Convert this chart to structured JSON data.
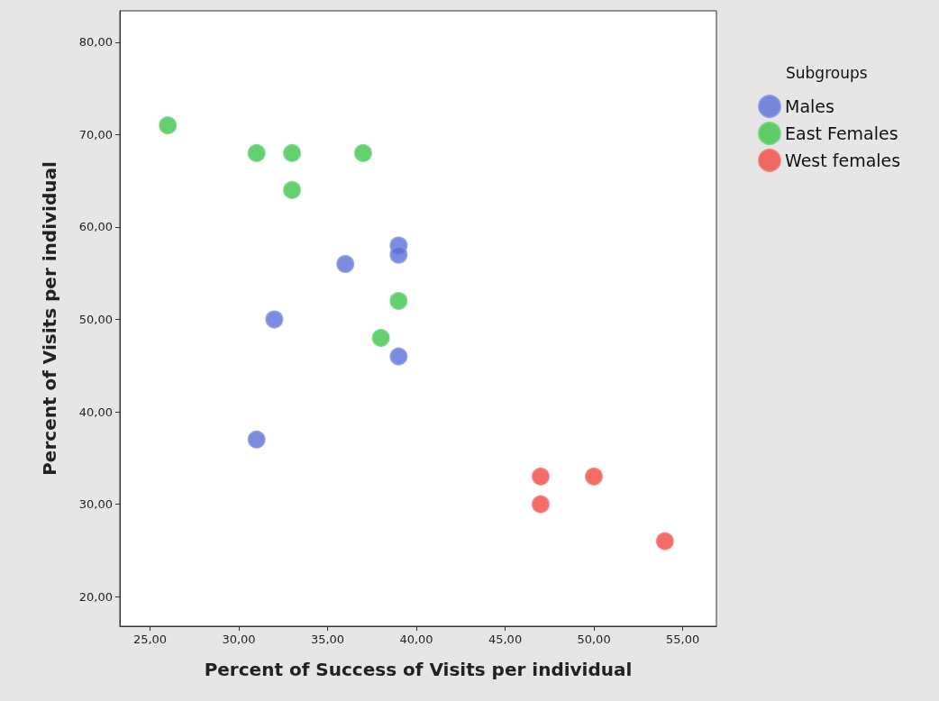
{
  "chart_data": {
    "type": "scatter",
    "xlabel": "Percent of Success of Visits per individual",
    "ylabel": "Percent of Visits per individual",
    "legend_title": "Subgroups",
    "legend": "top right",
    "grid": false,
    "marker": "circle",
    "xlim": [
      23.3,
      56.9
    ],
    "ylim": [
      16.8,
      83.4
    ],
    "xticks": [
      {
        "value": 25,
        "label": "25,00"
      },
      {
        "value": 30,
        "label": "30,00"
      },
      {
        "value": 35,
        "label": "35,00"
      },
      {
        "value": 40,
        "label": "40,00"
      },
      {
        "value": 45,
        "label": "45,00"
      },
      {
        "value": 50,
        "label": "50,00"
      },
      {
        "value": 55,
        "label": "55,00"
      }
    ],
    "yticks": [
      {
        "value": 20,
        "label": "20,00"
      },
      {
        "value": 30,
        "label": "30,00"
      },
      {
        "value": 40,
        "label": "40,00"
      },
      {
        "value": 50,
        "label": "50,00"
      },
      {
        "value": 60,
        "label": "60,00"
      },
      {
        "value": 70,
        "label": "70,00"
      },
      {
        "value": 80,
        "label": "80,00"
      }
    ],
    "series": [
      {
        "name": "Males",
        "color": "#5a6fd8",
        "x": [
          39,
          39,
          36,
          32,
          39,
          31
        ],
        "values": [
          58,
          57,
          56,
          50,
          46,
          37
        ]
      },
      {
        "name": "East Females",
        "color": "#3cc54a",
        "x": [
          26,
          31,
          33,
          37,
          33,
          39,
          38
        ],
        "values": [
          71,
          68,
          68,
          68,
          64,
          52,
          48
        ]
      },
      {
        "name": "West females",
        "color": "#f0473f",
        "x": [
          47,
          50,
          47,
          54
        ],
        "values": [
          33,
          33,
          30,
          26
        ]
      }
    ]
  }
}
